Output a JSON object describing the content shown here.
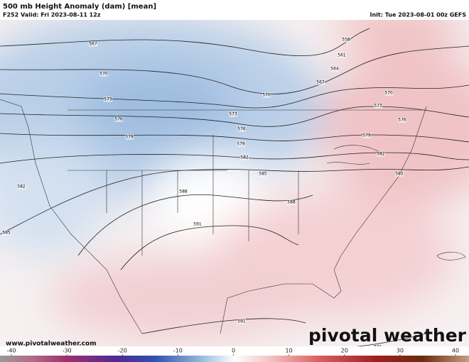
{
  "header": {
    "title": "500 mb Height Anomaly (dam) [mean]",
    "valid": "F252 Valid: Fri 2023-08-11 12z",
    "init": "Init: Tue 2023-08-01 00z GEFS"
  },
  "contour_labels": [
    "567",
    "570",
    "573",
    "576",
    "579",
    "582",
    "585",
    "588",
    "591",
    "558",
    "561",
    "564",
    "567",
    "570",
    "573",
    "576",
    "579",
    "582",
    "585",
    "588",
    "570",
    "573",
    "576",
    "579",
    "582",
    "585",
    "591",
    "591"
  ],
  "footer": {
    "website": "www.pivotalweather.com",
    "logo": "pivotal weather"
  },
  "colorbar": {
    "ticks": [
      -40,
      -30,
      -20,
      -10,
      0,
      10,
      20,
      30,
      40
    ],
    "lim": [
      -40,
      40
    ]
  }
}
